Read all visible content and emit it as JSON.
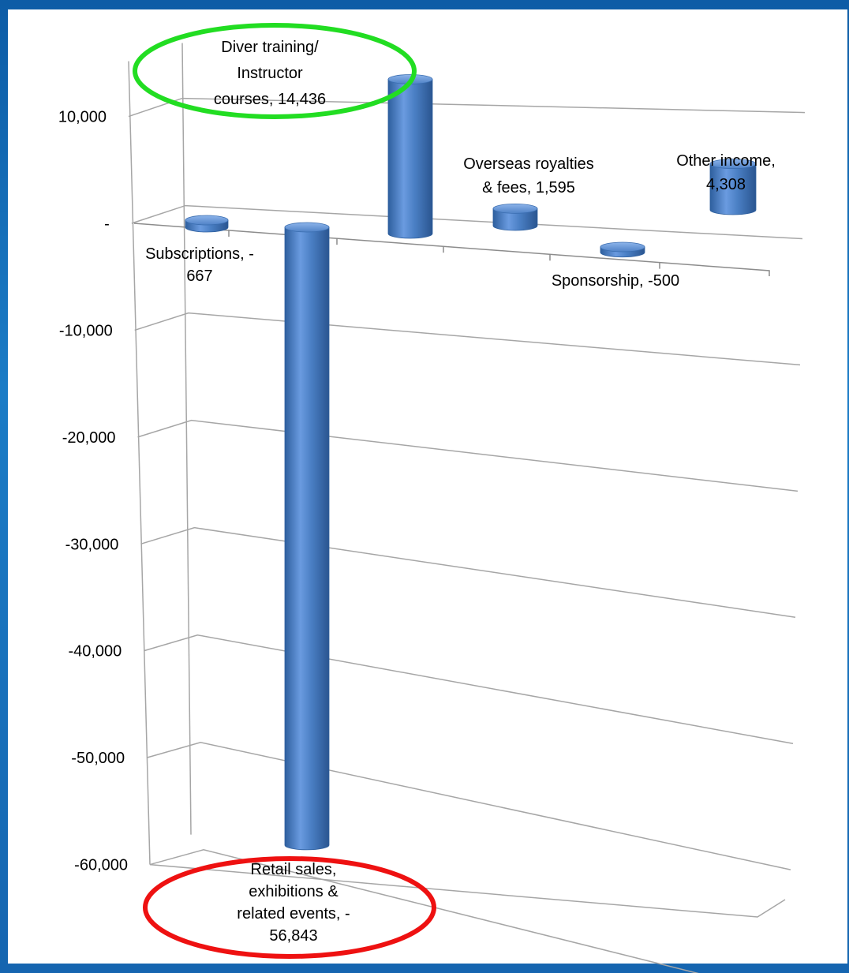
{
  "chart_data": {
    "type": "bar",
    "title": "",
    "xlabel": "",
    "ylabel": "",
    "ylim": [
      -60000,
      10000
    ],
    "y_ticks": [
      10000,
      0,
      -10000,
      -20000,
      -30000,
      -40000,
      -50000,
      -60000
    ],
    "y_tick_labels": [
      "10,000",
      "-",
      "-10,000",
      "-20,000",
      "-30,000",
      "-40,000",
      "-50,000",
      "-60,000"
    ],
    "categories": [
      "Subscriptions",
      "Retail sales, exhibitions & related events",
      "Diver training/ Instructor courses",
      "Overseas royalties & fees",
      "Sponsorship",
      "Other income"
    ],
    "values": [
      -667,
      -56843,
      14436,
      1595,
      -500,
      4308
    ],
    "data_labels": [
      [
        "Subscriptions, -",
        "667"
      ],
      [
        "Retail sales,",
        "exhibitions &",
        "related events, -",
        "56,843"
      ],
      [
        "Diver training/",
        "Instructor",
        "courses,  14,436"
      ],
      [
        "Overseas royalties",
        "& fees,  1,595"
      ],
      [
        "Sponsorship, -500"
      ],
      [
        "Other income,",
        "4,308"
      ]
    ],
    "grid": true,
    "bar_color": "#4a7fc4",
    "highlights": [
      {
        "category": "Diver training/ Instructor courses",
        "color": "#22dd22"
      },
      {
        "category": "Retail sales, exhibitions & related events",
        "color": "#ee1111"
      }
    ]
  }
}
